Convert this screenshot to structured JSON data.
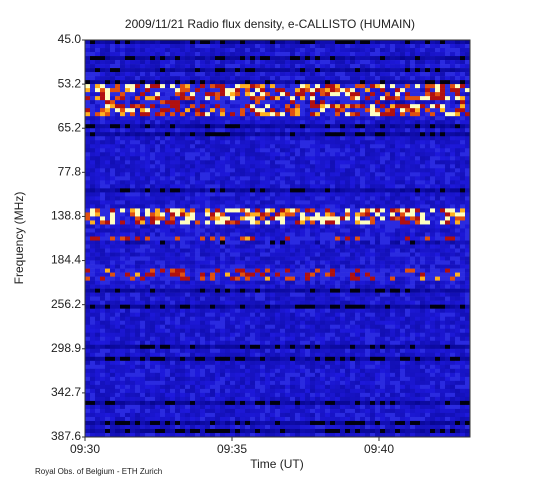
{
  "chart_data": {
    "type": "spectrogram",
    "title": "2009/11/21  Radio flux density, e-CALLISTO (HUMAIN)",
    "x_label": "Time (UT)",
    "y_label": "Frequency (MHz)",
    "x_tick_labels": [
      "09:30",
      "09:35",
      "09:40"
    ],
    "y_tick_labels": [
      "45.0",
      "53.2",
      "65.2",
      "77.8",
      "138.8",
      "184.4",
      "256.2",
      "298.9",
      "342.7",
      "387.6"
    ],
    "footer": "Royal Obs. of Belgium - ETH Zurich"
  }
}
